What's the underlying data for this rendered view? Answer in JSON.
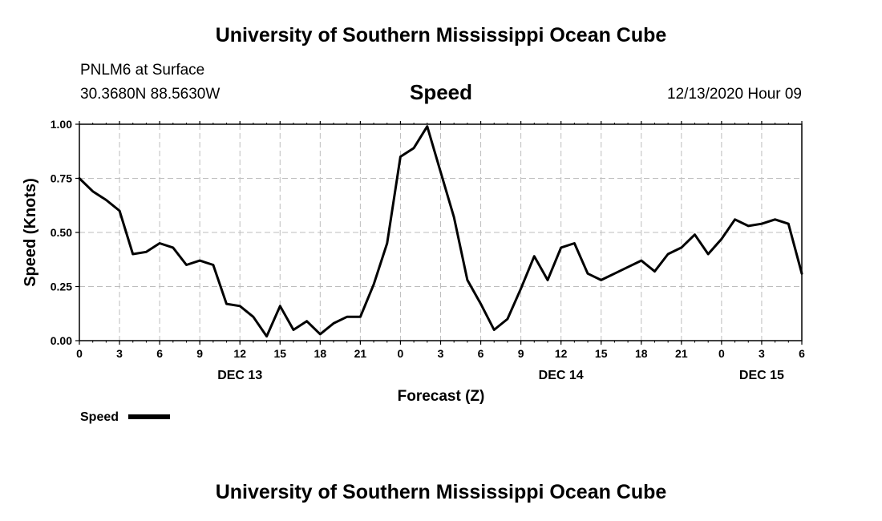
{
  "header": {
    "title": "University of Southern Mississippi Ocean Cube",
    "station": "PNLM6 at Surface",
    "coords": "30.3680N 88.5630W",
    "variable": "Speed",
    "datetime": "12/13/2020 Hour 09"
  },
  "footer": {
    "title": "University of Southern Mississippi Ocean Cube"
  },
  "chart_data": {
    "type": "line",
    "title": "Speed",
    "xlabel": "Forecast (Z)",
    "ylabel": "Speed (Knots)",
    "ylim": [
      0,
      1.0
    ],
    "xlim_hours": [
      0,
      54
    ],
    "y_ticks": [
      "0.00",
      "0.25",
      "0.50",
      "0.75",
      "1.00"
    ],
    "x_ticks": [
      "0",
      "3",
      "6",
      "9",
      "12",
      "15",
      "18",
      "21",
      "0",
      "3",
      "6",
      "9",
      "12",
      "15",
      "18",
      "21",
      "0",
      "3",
      "6"
    ],
    "day_labels": [
      {
        "label": "DEC 13",
        "hour": 12
      },
      {
        "label": "DEC 14",
        "hour": 36
      },
      {
        "label": "DEC 15",
        "hour": 51
      }
    ],
    "grid": true,
    "legend": {
      "label": "Speed",
      "position": "bottom-left"
    },
    "series": [
      {
        "name": "Speed",
        "hours": [
          0,
          1,
          2,
          3,
          4,
          5,
          6,
          7,
          8,
          9,
          10,
          11,
          12,
          13,
          14,
          15,
          16,
          17,
          18,
          19,
          20,
          21,
          22,
          23,
          24,
          25,
          26,
          27,
          28,
          29,
          30,
          31,
          32,
          33,
          34,
          35,
          36,
          37,
          38,
          39,
          40,
          41,
          42,
          43,
          44,
          45,
          46,
          47,
          48,
          49,
          50,
          51,
          52,
          53,
          54
        ],
        "values": [
          0.75,
          0.69,
          0.65,
          0.6,
          0.4,
          0.41,
          0.45,
          0.43,
          0.35,
          0.37,
          0.35,
          0.17,
          0.16,
          0.11,
          0.02,
          0.16,
          0.05,
          0.09,
          0.03,
          0.08,
          0.11,
          0.11,
          0.26,
          0.45,
          0.85,
          0.89,
          0.99,
          0.78,
          0.57,
          0.28,
          0.17,
          0.05,
          0.1,
          0.24,
          0.39,
          0.28,
          0.43,
          0.45,
          0.31,
          0.28,
          0.31,
          0.34,
          0.37,
          0.32,
          0.4,
          0.43,
          0.49,
          0.4,
          0.47,
          0.56,
          0.53,
          0.54,
          0.56,
          0.54,
          0.31
        ]
      }
    ]
  }
}
